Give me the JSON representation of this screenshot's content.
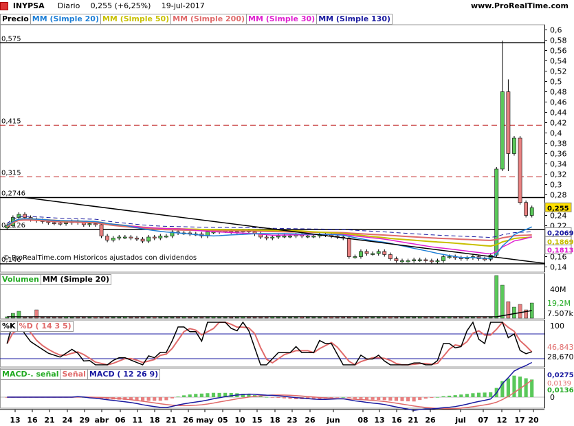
{
  "header": {
    "symbol": "INYPSA",
    "period": "Diario",
    "price_info": "0,255 (+6,25%)",
    "date": "19-jul-2017",
    "site": "www.ProRealTime.com"
  },
  "price_panel": {
    "legend": [
      {
        "text": "Precio",
        "color": "#000000"
      },
      {
        "text": "MM (Simple 20)",
        "color": "#1e7fd6"
      },
      {
        "text": "MM (Simple 50)",
        "color": "#c8c000"
      },
      {
        "text": "MM (Simple 200)",
        "color": "#e06a6a"
      },
      {
        "text": "MM (Simple 30)",
        "color": "#e020d0"
      },
      {
        "text": "MM (Simple 130)",
        "color": "#1a1aa0"
      }
    ],
    "level_labels": [
      "0,575",
      "0,415",
      "0,315",
      "0,2746",
      "0,2126",
      "0,146"
    ],
    "footnote": "© ProRealTime.com Historicos ajustados con dividendos",
    "y_ticks": [
      "0,6",
      "0,58",
      "0,56",
      "0,54",
      "0,52",
      "0,5",
      "0,48",
      "0,46",
      "0,44",
      "0,42",
      "0,4",
      "0,38",
      "0,36",
      "0,34",
      "0,32",
      "0,3",
      "0,28",
      "0,24",
      "0,22",
      "0,16",
      "0,14"
    ],
    "price_boxes": [
      {
        "text": "0,255",
        "bg": "#ffe000",
        "fg": "#000000"
      },
      {
        "text": "0,2069",
        "bg": "#ffffff",
        "fg": "#1a1aa0"
      },
      {
        "text": "0,1869",
        "bg": "#ffffff",
        "fg": "#c8c000"
      },
      {
        "text": "0,1813",
        "bg": "#ffffff",
        "fg": "#e020d0"
      }
    ]
  },
  "volume_panel": {
    "legend": [
      {
        "text": "Volumen",
        "color": "#22aa22"
      },
      {
        "text": "MM (Simple 20)",
        "color": "#000000"
      }
    ],
    "y_ticks": [
      "40M"
    ],
    "value_boxes": [
      {
        "text": "19,2M",
        "fg": "#22aa22"
      },
      {
        "text": "7.507k",
        "fg": "#000000"
      }
    ]
  },
  "stoch_panel": {
    "legend": [
      {
        "text": "%K",
        "color": "#000000"
      },
      {
        "text": "%D ( 14 3 5)",
        "color": "#e06a6a"
      }
    ],
    "y_ticks": [
      "100"
    ],
    "value_boxes": [
      {
        "text": "46,843",
        "fg": "#e06a6a"
      },
      {
        "text": "28,670",
        "fg": "#000000"
      }
    ]
  },
  "macd_panel": {
    "legend": [
      {
        "text": "MACD-. señal",
        "color": "#22aa22"
      },
      {
        "text": "Señal",
        "color": "#e06a6a"
      },
      {
        "text": "MACD ( 12 26 9)",
        "color": "#1a1aa0"
      }
    ],
    "y_ticks": [
      "0"
    ],
    "value_boxes": [
      {
        "text": "0,0275",
        "fg": "#1a1aa0"
      },
      {
        "text": "0,0139",
        "fg": "#e06a6a"
      },
      {
        "text": "0,0136",
        "fg": "#22aa22"
      }
    ]
  },
  "x_labels": [
    "13",
    "16",
    "21",
    "24",
    "29",
    "abr",
    "06",
    "11",
    "18",
    "21",
    "26",
    "may",
    "05",
    "10",
    "15",
    "18",
    "23",
    "26",
    "jun",
    "08",
    "13",
    "16",
    "21",
    "26",
    "jul",
    "07",
    "12",
    "17",
    "20"
  ],
  "chart_data": {
    "type": "candlestick",
    "title": "INYPSA Diario",
    "ylim": [
      0.13,
      0.61
    ],
    "closes": [
      0.22,
      0.236,
      0.242,
      0.236,
      0.232,
      0.23,
      0.228,
      0.226,
      0.225,
      0.224,
      0.226,
      0.228,
      0.226,
      0.222,
      0.224,
      0.222,
      0.2,
      0.192,
      0.196,
      0.198,
      0.198,
      0.196,
      0.194,
      0.19,
      0.198,
      0.196,
      0.2,
      0.2,
      0.208,
      0.206,
      0.206,
      0.204,
      0.204,
      0.2,
      0.208,
      0.208,
      0.21,
      0.21,
      0.208,
      0.208,
      0.21,
      0.208,
      0.204,
      0.198,
      0.196,
      0.198,
      0.2,
      0.2,
      0.2,
      0.202,
      0.2,
      0.2,
      0.2,
      0.204,
      0.202,
      0.2,
      0.198,
      0.196,
      0.16,
      0.16,
      0.17,
      0.166,
      0.166,
      0.17,
      0.164,
      0.156,
      0.152,
      0.152,
      0.152,
      0.154,
      0.154,
      0.152,
      0.15,
      0.152,
      0.16,
      0.16,
      0.158,
      0.156,
      0.158,
      0.16,
      0.156,
      0.155,
      0.163,
      0.33,
      0.48,
      0.36,
      0.39,
      0.265,
      0.24,
      0.255
    ],
    "levels": [
      0.575,
      0.415,
      0.315,
      0.2746,
      0.2126,
      0.146
    ],
    "last_values": {
      "price": 0.255,
      "mm130": 0.2069,
      "mm50": 0.1869,
      "mm30": 0.1813
    },
    "volume_last": {
      "volume": "19,2M",
      "mm20": "7.507k"
    },
    "stochastic_last": {
      "d": 46.843,
      "k": 28.67
    },
    "macd_last": {
      "macd": 0.0275,
      "signal": 0.0139,
      "histogram": 0.0136
    }
  }
}
